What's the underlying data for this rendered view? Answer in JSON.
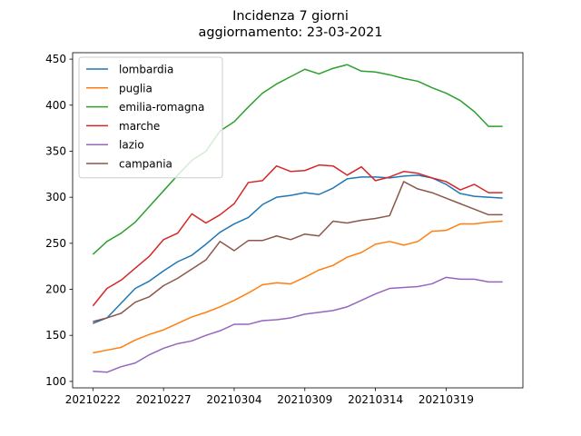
{
  "chart_data": {
    "type": "line",
    "title": "Incidenza 7 giorni",
    "subtitle": "aggiornamento: 23-03-2021",
    "xlabel": "",
    "ylabel": "",
    "x": [
      "20210222",
      "20210223",
      "20210224",
      "20210225",
      "20210226",
      "20210227",
      "20210228",
      "20210301",
      "20210302",
      "20210303",
      "20210304",
      "20210305",
      "20210306",
      "20210307",
      "20210308",
      "20210309",
      "20210310",
      "20210311",
      "20210312",
      "20210313",
      "20210314",
      "20210315",
      "20210316",
      "20210317",
      "20210318",
      "20210319",
      "20210320",
      "20210321",
      "20210322",
      "20210323"
    ],
    "xticks": [
      "20210222",
      "20210227",
      "20210304",
      "20210309",
      "20210314",
      "20210319"
    ],
    "yticks": [
      100,
      150,
      200,
      250,
      300,
      350,
      400,
      450
    ],
    "ylim": [
      93,
      457
    ],
    "grid": false,
    "legend_position": "upper left",
    "series": [
      {
        "name": "lombardia",
        "color": "#1f77b4",
        "values": [
          163,
          169,
          185,
          201,
          209,
          220,
          230,
          237,
          249,
          262,
          271,
          278,
          292,
          300,
          302,
          305,
          303,
          310,
          320,
          322,
          322,
          321,
          323,
          324,
          321,
          314,
          304,
          301,
          300,
          299
        ]
      },
      {
        "name": "puglia",
        "color": "#ff7f0e",
        "values": [
          131,
          134,
          137,
          145,
          151,
          156,
          163,
          170,
          175,
          181,
          188,
          196,
          205,
          207,
          206,
          213,
          221,
          226,
          235,
          240,
          249,
          252,
          248,
          252,
          263,
          264,
          271,
          271,
          273,
          274
        ]
      },
      {
        "name": "emilia-romagna",
        "color": "#2ca02c",
        "values": [
          238,
          252,
          261,
          273,
          290,
          307,
          324,
          340,
          350,
          372,
          382,
          398,
          413,
          423,
          431,
          439,
          434,
          440,
          444,
          437,
          436,
          433,
          429,
          426,
          419,
          413,
          405,
          393,
          377,
          377
        ]
      },
      {
        "name": "marche",
        "color": "#d62728",
        "values": [
          182,
          201,
          210,
          223,
          236,
          254,
          261,
          282,
          272,
          281,
          293,
          316,
          318,
          334,
          328,
          329,
          335,
          334,
          324,
          333,
          318,
          322,
          328,
          326,
          321,
          317,
          308,
          314,
          305,
          305
        ]
      },
      {
        "name": "lazio",
        "color": "#9467bd",
        "values": [
          111,
          110,
          116,
          120,
          129,
          136,
          141,
          144,
          150,
          155,
          162,
          162,
          166,
          167,
          169,
          173,
          175,
          177,
          181,
          188,
          195,
          201,
          202,
          203,
          206,
          213,
          211,
          211,
          208,
          208
        ]
      },
      {
        "name": "campania",
        "color": "#8c564b",
        "values": [
          165,
          169,
          174,
          186,
          192,
          204,
          212,
          222,
          232,
          252,
          242,
          253,
          253,
          258,
          254,
          260,
          258,
          274,
          272,
          275,
          277,
          280,
          317,
          309,
          305,
          299,
          293,
          287,
          281,
          281
        ]
      }
    ]
  }
}
